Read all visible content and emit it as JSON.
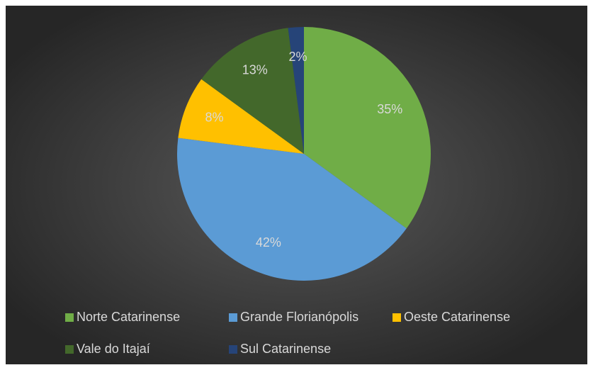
{
  "chart_data": {
    "type": "pie",
    "categories": [
      "Norte Catarinense",
      "Grande Florianópolis",
      "Oeste Catarinense",
      "Vale do Itajaí",
      "Sul Catarinense"
    ],
    "values": [
      35,
      42,
      8,
      13,
      2
    ],
    "value_labels": [
      "35%",
      "42%",
      "8%",
      "13%",
      "2%"
    ],
    "colors": [
      "#70ad47",
      "#5b9bd5",
      "#ffc000",
      "#43682b",
      "#264478"
    ],
    "legend": "bottom"
  }
}
